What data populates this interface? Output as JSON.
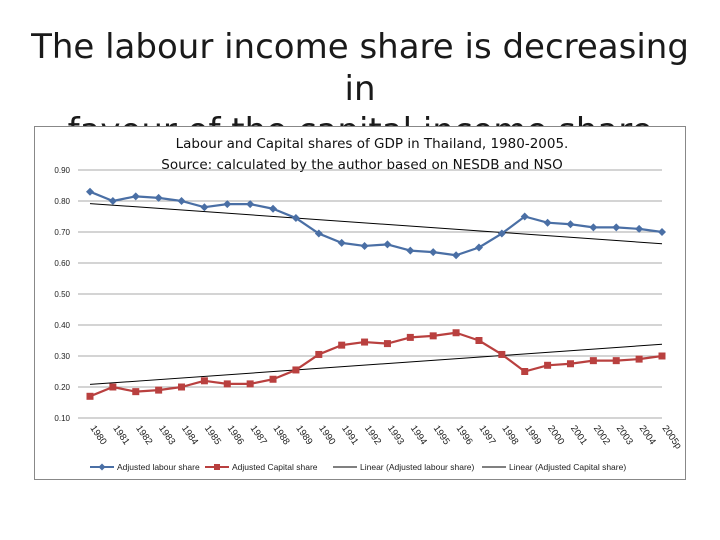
{
  "slide": {
    "title_line1": "The labour income share is decreasing in",
    "title_line2": "favour of the capital income share"
  },
  "chart_data": {
    "type": "line",
    "title_line1": "Labour and  Capital shares of GDP in Thailand, 1980-2005.",
    "title_line2": "Source: calculated by the author based on NESDB and NSO",
    "categories": [
      "1980",
      "1981",
      "1982",
      "1983",
      "1984",
      "1985",
      "1986",
      "1987",
      "1988",
      "1989",
      "1990",
      "1991",
      "1992",
      "1993",
      "1994",
      "1995",
      "1996",
      "1997",
      "1998",
      "1999",
      "2000",
      "2001",
      "2002",
      "2003",
      "2004",
      "2005p"
    ],
    "series": [
      {
        "name": "Adjusted labour share",
        "color": "#4a6fa5",
        "marker": "diamond",
        "values": [
          0.83,
          0.8,
          0.815,
          0.81,
          0.8,
          0.78,
          0.79,
          0.79,
          0.775,
          0.745,
          0.695,
          0.665,
          0.655,
          0.66,
          0.64,
          0.635,
          0.625,
          0.65,
          0.695,
          0.75,
          0.73,
          0.725,
          0.715,
          0.715,
          0.71,
          0.7
        ]
      },
      {
        "name": "Adjusted Capital share",
        "color": "#b9403f",
        "marker": "square",
        "values": [
          0.17,
          0.2,
          0.185,
          0.19,
          0.2,
          0.22,
          0.21,
          0.21,
          0.225,
          0.255,
          0.305,
          0.335,
          0.345,
          0.34,
          0.36,
          0.365,
          0.375,
          0.35,
          0.305,
          0.25,
          0.27,
          0.275,
          0.285,
          0.285,
          0.29,
          0.3
        ]
      }
    ],
    "trendlines": [
      {
        "name": "Linear (Adjusted labour share)",
        "color": "#000000"
      },
      {
        "name": "Linear (Adjusted Capital share)",
        "color": "#000000"
      }
    ],
    "y_ticks": [
      "0.10",
      "0.20",
      "0.30",
      "0.40",
      "0.50",
      "0.60",
      "0.70",
      "0.80",
      "0.90"
    ],
    "ylim": [
      0.1,
      0.9
    ],
    "grid": true,
    "legend_position": "bottom"
  }
}
